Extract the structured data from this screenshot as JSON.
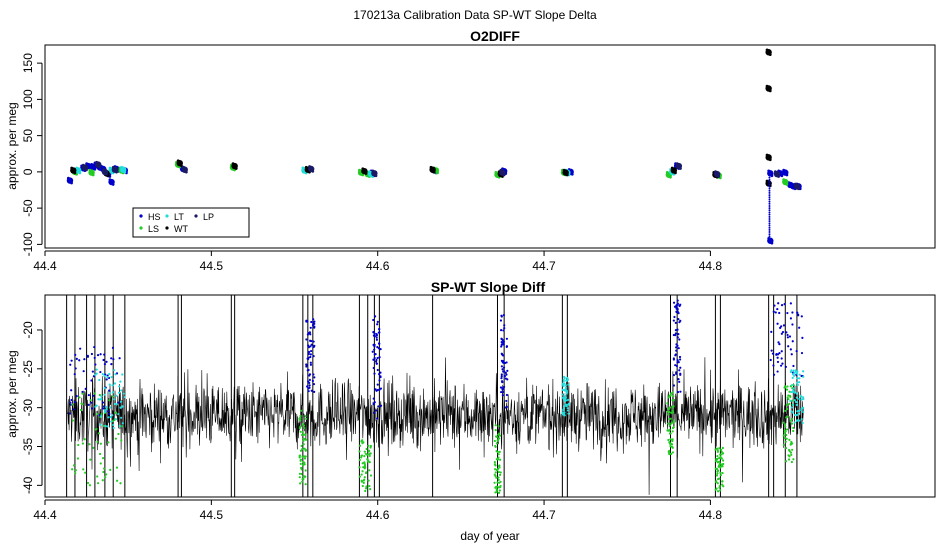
{
  "figure_title": "170213a   Calibration Data SP-WT Slope Delta",
  "colors": {
    "HS": "#0000cc",
    "LS": "#22cc22",
    "LT": "#22dddd",
    "WT": "#000000",
    "LP": "#1a1a66",
    "frame": "#000000"
  },
  "chart_data": [
    {
      "type": "scatter",
      "title": "O2DIFF",
      "ylabel": "approx. per meg",
      "xlabel": "",
      "xlim": [
        44.4,
        44.935
      ],
      "ylim": [
        -105,
        175
      ],
      "xticks": [
        44.4,
        44.5,
        44.6,
        44.7,
        44.8
      ],
      "xtick_labels": [
        "44.4",
        "44.5",
        "44.6",
        "44.7",
        "44.8"
      ],
      "yticks": [
        -100,
        -50,
        0,
        50,
        100,
        150
      ],
      "ytick_labels": [
        "-100",
        "-50",
        "0",
        "50",
        "100",
        "150"
      ],
      "grid": false,
      "legend": {
        "placement": "bottom-left",
        "entries": [
          {
            "label": "HS",
            "color": "#0000cc"
          },
          {
            "label": "LS",
            "color": "#22cc22"
          },
          {
            "label": "LT",
            "color": "#22dddd"
          },
          {
            "label": "WT",
            "color": "#000000"
          },
          {
            "label": "LP",
            "color": "#1a1a66"
          }
        ]
      },
      "series": [
        {
          "name": "HS",
          "color": "#0000cc",
          "points": [
            [
              44.415,
              -12
            ],
            [
              44.423,
              5
            ],
            [
              44.426,
              8
            ],
            [
              44.429,
              7
            ],
            [
              44.431,
              9
            ],
            [
              44.433,
              6
            ],
            [
              44.435,
              4
            ],
            [
              44.438,
              -3
            ],
            [
              44.44,
              -14
            ],
            [
              44.443,
              4
            ],
            [
              44.448,
              2
            ],
            [
              44.483,
              4
            ],
            [
              44.597,
              -2
            ],
            [
              44.634,
              2
            ],
            [
              44.676,
              1
            ],
            [
              44.716,
              0
            ],
            [
              44.78,
              8
            ],
            [
              44.836,
              -2
            ],
            [
              44.842,
              -2
            ],
            [
              44.845,
              -1
            ],
            [
              44.848,
              -18
            ],
            [
              44.85,
              -20
            ],
            [
              44.853,
              -20
            ],
            [
              44.836,
              -95
            ]
          ]
        },
        {
          "name": "LS",
          "color": "#22cc22",
          "points": [
            [
              44.418,
              0
            ],
            [
              44.428,
              -1
            ],
            [
              44.446,
              2
            ],
            [
              44.48,
              10
            ],
            [
              44.513,
              6
            ],
            [
              44.556,
              2
            ],
            [
              44.59,
              -1
            ],
            [
              44.594,
              -3
            ],
            [
              44.635,
              2
            ],
            [
              44.672,
              -4
            ],
            [
              44.712,
              -1
            ],
            [
              44.775,
              -4
            ],
            [
              44.805,
              -5
            ],
            [
              44.845,
              -14
            ]
          ]
        },
        {
          "name": "LT",
          "color": "#22dddd",
          "points": [
            [
              44.42,
              2
            ],
            [
              44.44,
              2
            ],
            [
              44.447,
              3
            ],
            [
              44.556,
              2
            ],
            [
              44.596,
              -3
            ],
            [
              44.714,
              -1
            ],
            [
              44.777,
              0
            ]
          ]
        },
        {
          "name": "WT",
          "color": "#000000",
          "points": [
            [
              44.417,
              2
            ],
            [
              44.437,
              -2
            ],
            [
              44.481,
              12
            ],
            [
              44.514,
              8
            ],
            [
              44.558,
              3
            ],
            [
              44.592,
              1
            ],
            [
              44.633,
              3
            ],
            [
              44.674,
              -3
            ],
            [
              44.713,
              -1
            ],
            [
              44.778,
              2
            ],
            [
              44.803,
              -4
            ],
            [
              44.835,
              -16
            ],
            [
              44.835,
              115
            ],
            [
              44.835,
              165
            ],
            [
              44.835,
              20
            ]
          ]
        },
        {
          "name": "LP",
          "color": "#1a1a66",
          "points": [
            [
              44.424,
              6
            ],
            [
              44.432,
              10
            ],
            [
              44.436,
              0
            ],
            [
              44.442,
              3
            ],
            [
              44.484,
              3
            ],
            [
              44.56,
              4
            ],
            [
              44.598,
              -2
            ],
            [
              44.675,
              -1
            ],
            [
              44.781,
              8
            ],
            [
              44.804,
              -3
            ],
            [
              44.84,
              -3
            ],
            [
              44.852,
              -20
            ]
          ]
        }
      ]
    },
    {
      "type": "line",
      "title": "SP-WT Slope Diff",
      "ylabel": "approx. per meg",
      "xlabel": "day of year",
      "xlim": [
        44.4,
        44.935
      ],
      "ylim": [
        -41.5,
        -15.5
      ],
      "xticks": [
        44.4,
        44.5,
        44.6,
        44.7,
        44.8
      ],
      "xtick_labels": [
        "44.4",
        "44.5",
        "44.6",
        "44.7",
        "44.8"
      ],
      "yticks": [
        -40,
        -35,
        -30,
        -25,
        -20
      ],
      "ytick_labels": [
        "-40",
        "-35",
        "-30",
        "-25",
        "-20"
      ],
      "grid": false,
      "trace": {
        "name": "WT",
        "color": "#000000",
        "x_start": 44.413,
        "x_end": 44.856,
        "mean": -31,
        "noise_amplitude": 4.5
      },
      "spikes_x": [
        44.413,
        44.418,
        44.425,
        44.43,
        44.436,
        44.441,
        44.448,
        44.48,
        44.482,
        44.512,
        44.514,
        44.555,
        44.558,
        44.561,
        44.589,
        44.594,
        44.598,
        44.601,
        44.633,
        44.672,
        44.676,
        44.711,
        44.714,
        44.776,
        44.78,
        44.803,
        44.806,
        44.835,
        44.838,
        44.845,
        44.852
      ],
      "colored_segments": [
        {
          "color": "#0000cc",
          "x": [
            44.415,
            44.445
          ],
          "y": [
            -31,
            -22
          ]
        },
        {
          "color": "#22cc22",
          "x": [
            44.416,
            44.447
          ],
          "y": [
            -40,
            -28
          ]
        },
        {
          "color": "#22dddd",
          "x": [
            44.43,
            44.448
          ],
          "y": [
            -33,
            -25
          ]
        },
        {
          "color": "#0000cc",
          "x": [
            44.557,
            44.562
          ],
          "y": [
            -28,
            -18
          ]
        },
        {
          "color": "#22cc22",
          "x": [
            44.553,
            44.557
          ],
          "y": [
            -40,
            -30
          ]
        },
        {
          "color": "#0000cc",
          "x": [
            44.597,
            44.602
          ],
          "y": [
            -32,
            -18
          ]
        },
        {
          "color": "#22cc22",
          "x": [
            44.589,
            44.596
          ],
          "y": [
            -41,
            -34
          ]
        },
        {
          "color": "#0000cc",
          "x": [
            44.674,
            44.678
          ],
          "y": [
            -30,
            -18
          ]
        },
        {
          "color": "#22cc22",
          "x": [
            44.67,
            44.674
          ],
          "y": [
            -41,
            -32
          ]
        },
        {
          "color": "#22dddd",
          "x": [
            44.711,
            44.715
          ],
          "y": [
            -31,
            -26
          ]
        },
        {
          "color": "#0000cc",
          "x": [
            44.778,
            44.782
          ],
          "y": [
            -28,
            -16
          ]
        },
        {
          "color": "#22cc22",
          "x": [
            44.774,
            44.778
          ],
          "y": [
            -36,
            -28
          ]
        },
        {
          "color": "#22cc22",
          "x": [
            44.803,
            44.808
          ],
          "y": [
            -41,
            -35
          ]
        },
        {
          "color": "#0000cc",
          "x": [
            44.836,
            44.856
          ],
          "y": [
            -26,
            -16
          ]
        },
        {
          "color": "#22cc22",
          "x": [
            44.844,
            44.85
          ],
          "y": [
            -37,
            -27
          ]
        },
        {
          "color": "#22dddd",
          "x": [
            44.848,
            44.856
          ],
          "y": [
            -32,
            -25
          ]
        }
      ]
    }
  ]
}
